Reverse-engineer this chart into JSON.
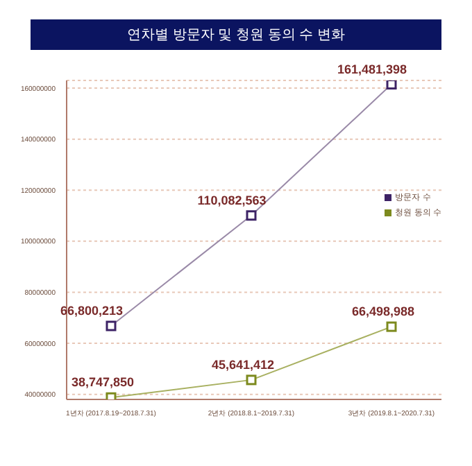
{
  "chart_data": {
    "type": "line",
    "title": "연차별 방문자 및 청원 동의 수 변화",
    "categories": [
      "1년차 (2017.8.19~2018.7.31)",
      "2년차 (2018.8.1~2019.7.31)",
      "3년차 (2019.8.1~2020.7.31)"
    ],
    "series": [
      {
        "name": "방문자 수",
        "color": "#3d2366",
        "values": [
          66800213,
          110082563,
          161481398
        ],
        "value_labels": [
          "66,800,213",
          "110,082,563",
          "161,481,398"
        ]
      },
      {
        "name": "청원 동의 수",
        "color": "#7d8a1e",
        "values": [
          38747850,
          45641412,
          66498988
        ],
        "value_labels": [
          "38,747,850",
          "45,641,412",
          "66,498,988"
        ]
      }
    ],
    "ylim": [
      38000000,
      163000000
    ],
    "yticks": [
      40000000,
      60000000,
      80000000,
      100000000,
      120000000,
      140000000,
      160000000
    ],
    "grid": "y",
    "legend": "right",
    "marker": "square",
    "line_style": "solid"
  }
}
